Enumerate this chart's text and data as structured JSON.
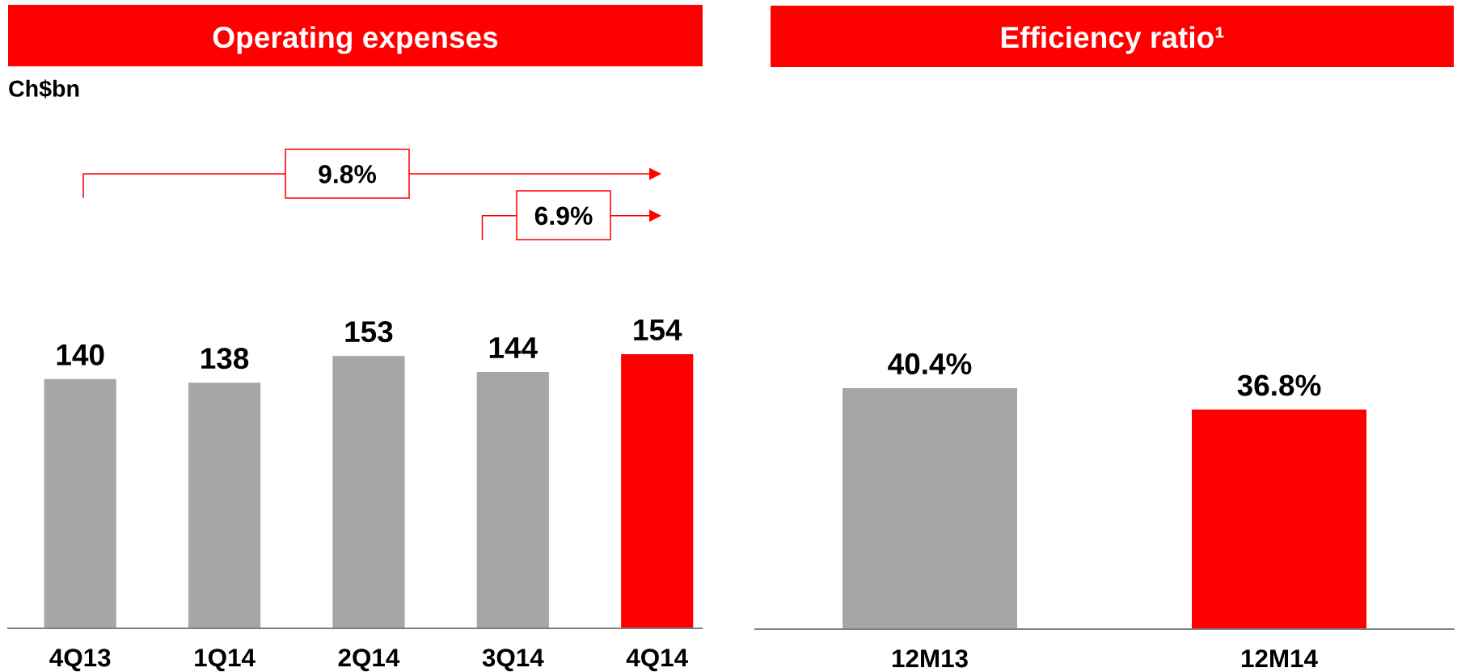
{
  "chart_data": [
    {
      "type": "bar",
      "title": "Operating expenses",
      "subtitle": "Ch$bn",
      "categories": [
        "4Q13",
        "1Q14",
        "2Q14",
        "3Q14",
        "4Q14"
      ],
      "values": [
        140,
        138,
        153,
        144,
        154
      ],
      "colors": [
        "#a6a6a6",
        "#a6a6a6",
        "#a6a6a6",
        "#a6a6a6",
        "#ff0000"
      ],
      "data_labels": true,
      "tick_labels": "x",
      "annotations": [
        "9.8%",
        "6.9%"
      ]
    },
    {
      "type": "bar",
      "title": "Efficiency ratio¹",
      "categories": [
        "12M13",
        "12M14"
      ],
      "values": [
        40.4,
        36.8
      ],
      "value_labels": [
        "40.4%",
        "36.8%"
      ],
      "colors": [
        "#a6a6a6",
        "#ff0000"
      ],
      "tick_labels": "x"
    }
  ]
}
